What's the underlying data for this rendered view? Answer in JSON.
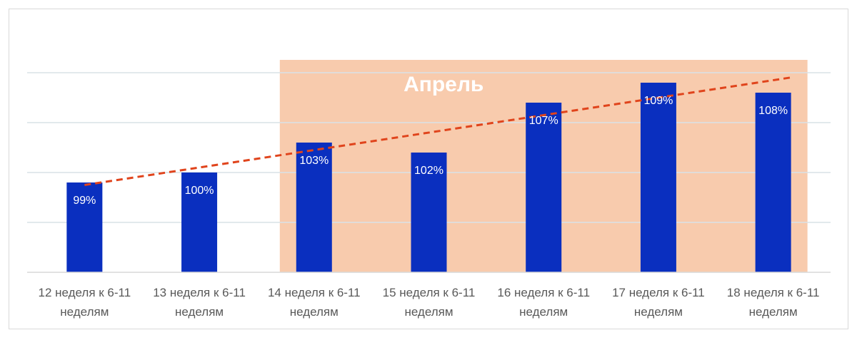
{
  "chart_data": {
    "type": "bar",
    "title": "",
    "xlabel": "",
    "ylabel": "",
    "categories": [
      [
        "12 неделя к 6-11",
        "неделям"
      ],
      [
        "13 неделя к 6-11",
        "неделям"
      ],
      [
        "14 неделя к 6-11",
        "неделям"
      ],
      [
        "15 неделя к 6-11",
        "неделям"
      ],
      [
        "16 неделя к 6-11",
        "неделям"
      ],
      [
        "17 неделя к 6-11",
        "неделям"
      ],
      [
        "18 неделя к 6-11",
        "неделям"
      ]
    ],
    "values": [
      99,
      100,
      103,
      102,
      107,
      109,
      108
    ],
    "data_labels": [
      "99%",
      "100%",
      "103%",
      "102%",
      "107%",
      "109%",
      "108%"
    ],
    "ylim": [
      90,
      110
    ],
    "grid": true,
    "trendline": {
      "type": "linear",
      "style": "dashed"
    },
    "highlight_band": {
      "label": "Апрель",
      "from_category": 2,
      "to_category": 6
    },
    "colors": {
      "bar": "#0a2fbf",
      "trend": "#e0441c",
      "band": "#f8cbad",
      "grid": "#d9e2e6",
      "axis": "#d9d9d9"
    }
  }
}
